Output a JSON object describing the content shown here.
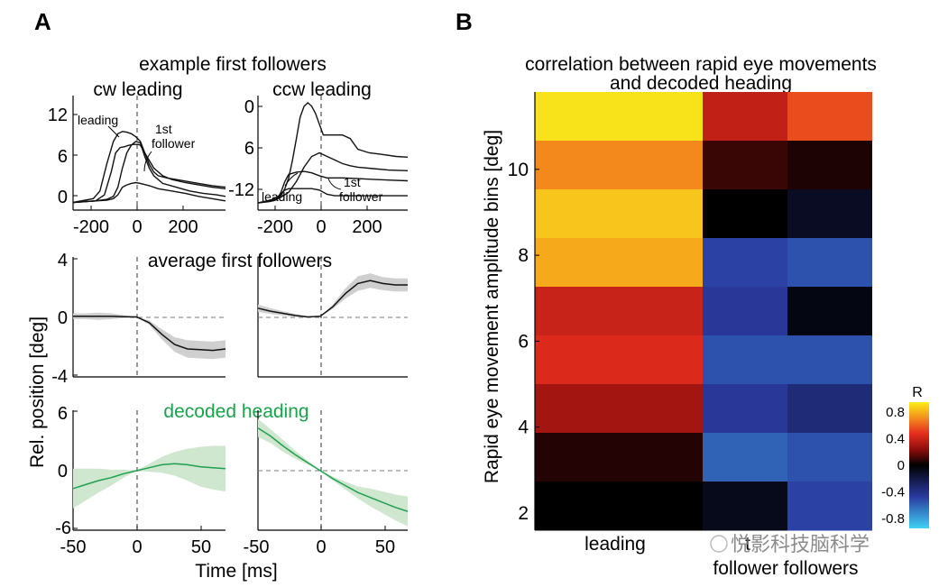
{
  "panels": {
    "a": "A",
    "b": "B"
  },
  "panel_a": {
    "section_title": "example first followers",
    "top_left": {
      "title": "cw leading",
      "yticks": [
        "12",
        "6",
        "0"
      ],
      "xticks": [
        "-200",
        "0",
        "200"
      ],
      "annot_leading": "leading",
      "annot_follower_1": "1st",
      "annot_follower_2": "follower"
    },
    "top_right": {
      "title": "ccw leading",
      "yticks": [
        "0",
        "6",
        "-12"
      ],
      "xticks": [
        "-200",
        "0",
        "200"
      ],
      "annot_leading": "leading",
      "annot_follower_1": "1st",
      "annot_follower_2": "follower"
    },
    "middle": {
      "title": "average first followers",
      "yticks": [
        "4",
        "0",
        "-4"
      ],
      "ylabel": "Rel. position [deg]"
    },
    "bottom": {
      "title": "decoded heading",
      "yticks": [
        "6",
        "0",
        "-6"
      ],
      "xticks": [
        "-50",
        "0",
        "50"
      ],
      "xlabel": "Time [ms]"
    }
  },
  "chart_data": [
    {
      "type": "line",
      "panel": "A top-left",
      "title": "cw leading",
      "x_range": [
        -300,
        380
      ],
      "y_range": [
        -1,
        14
      ],
      "xticks": [
        -200,
        0,
        200
      ],
      "yticks": [
        12,
        6,
        0
      ],
      "vertical_reference": 0,
      "series": [
        {
          "x": [
            -300,
            -210,
            -180,
            -150,
            -120,
            -100,
            -80,
            -60,
            -40,
            -20,
            0,
            20,
            40,
            60,
            80,
            120,
            160,
            200,
            260,
            320,
            380
          ],
          "values": [
            0,
            0.5,
            1.5,
            5,
            8,
            9,
            9.3,
            9.2,
            9,
            8.6,
            8,
            6.5,
            5,
            4,
            3.5,
            3.2,
            3,
            2.8,
            2.5,
            2.2,
            2
          ]
        },
        {
          "x": [
            -300,
            -200,
            -160,
            -130,
            -110,
            -90,
            -70,
            -50,
            -30,
            -10,
            0,
            20,
            40,
            60,
            100,
            140,
            200,
            260,
            320,
            380
          ],
          "values": [
            0,
            0.2,
            1,
            4,
            6.5,
            7.2,
            7.3,
            7.5,
            7.6,
            7.6,
            7.5,
            6.5,
            5.5,
            4.5,
            3.5,
            3,
            2.6,
            2.3,
            2,
            1.8
          ]
        },
        {
          "x": [
            -300,
            -200,
            -150,
            -120,
            -100,
            -80,
            -60,
            -40,
            -20,
            0,
            20,
            40,
            60,
            100,
            160,
            220,
            280,
            340,
            380
          ],
          "values": [
            0,
            0.2,
            0.4,
            0.8,
            2,
            4.5,
            6.5,
            7.5,
            8,
            7.8,
            6,
            4.5,
            3.5,
            2.5,
            2,
            1.5,
            1.2,
            1,
            0.8
          ]
        },
        {
          "x": [
            -300,
            -200,
            -150,
            -120,
            -100,
            -80,
            -60,
            -40,
            -20,
            0,
            40,
            80,
            140,
            200,
            260,
            320,
            380
          ],
          "values": [
            0,
            0.2,
            0.3,
            0.5,
            1,
            2,
            2.3,
            2.5,
            2.6,
            2.5,
            2.2,
            1.8,
            1.5,
            1.2,
            0.8,
            0.5,
            0.2
          ]
        }
      ]
    },
    {
      "type": "line",
      "panel": "A top-right",
      "title": "ccw leading",
      "x_range": [
        -160,
        230
      ],
      "y_range": [
        -15,
        1
      ],
      "xticks": [
        -200,
        0,
        200
      ],
      "yticks": [
        0,
        6,
        -12
      ],
      "vertical_reference": 0,
      "series": [
        {
          "x": [
            -160,
            -120,
            -100,
            -90,
            -80,
            -70,
            -60,
            -50,
            -40,
            -30,
            -20,
            -10,
            0,
            10,
            20,
            40,
            60,
            80,
            100,
            130,
            160,
            200,
            230
          ],
          "values": [
            0,
            -0.5,
            -1,
            -2,
            -3.5,
            -6,
            -9,
            -12,
            -13.5,
            -14,
            -13.5,
            -12.5,
            -11,
            -9.5,
            -9.5,
            -9.5,
            -9.5,
            -9,
            -7.5,
            -7,
            -6.8,
            -6.5,
            -6.4
          ]
        },
        {
          "x": [
            -160,
            -120,
            -100,
            -80,
            -60,
            -40,
            -20,
            0,
            20,
            40,
            60,
            80,
            100,
            140,
            180,
            230
          ],
          "values": [
            0,
            -0.3,
            -0.8,
            -1.5,
            -3,
            -5,
            -6.5,
            -7,
            -6.5,
            -6,
            -5.5,
            -5.2,
            -5,
            -4.8,
            -4.6,
            -4.5
          ]
        },
        {
          "x": [
            -160,
            -130,
            -110,
            -100,
            -90,
            -80,
            -60,
            -40,
            -20,
            0,
            20,
            40,
            60,
            100,
            140,
            180,
            230
          ],
          "values": [
            0,
            -0.2,
            -0.5,
            -1.5,
            -3,
            -4,
            -4.3,
            -4.4,
            -4.2,
            -3.8,
            -3.5,
            -3.5,
            -3.5,
            -3.4,
            -3.3,
            -3.2,
            -3.1
          ]
        },
        {
          "x": [
            -160,
            -130,
            -110,
            -100,
            -90,
            -80,
            -60,
            -40,
            -20,
            0,
            20,
            40,
            60,
            100,
            140,
            180,
            230
          ],
          "values": [
            0,
            -0.3,
            -0.8,
            -1.3,
            -1.8,
            -2,
            -2,
            -2,
            -2,
            -1.8,
            -1.2,
            -1,
            -1,
            -1,
            -1,
            -1,
            -1
          ]
        }
      ]
    },
    {
      "type": "line",
      "panel": "A middle-left",
      "title": "average first followers",
      "x_range": [
        -50,
        70
      ],
      "y_range": [
        -4,
        4
      ],
      "yticks": [
        4,
        0,
        -4
      ],
      "vertical_reference": 0,
      "horizontal_reference": 0,
      "x": [
        -50,
        -40,
        -30,
        -20,
        -10,
        0,
        10,
        20,
        30,
        40,
        50,
        60,
        70
      ],
      "mean": [
        0.05,
        0.05,
        0.05,
        0.05,
        0.02,
        0,
        -0.4,
        -1.2,
        -1.9,
        -2.2,
        -2.25,
        -2.3,
        -2.2
      ],
      "band_width": [
        0.2,
        0.2,
        0.25,
        0.2,
        0.1,
        0,
        0.15,
        0.35,
        0.5,
        0.6,
        0.6,
        0.6,
        0.6
      ]
    },
    {
      "type": "line",
      "panel": "A middle-right",
      "x_range": [
        -50,
        70
      ],
      "y_range": [
        -4,
        4
      ],
      "vertical_reference": 0,
      "horizontal_reference": 0,
      "x": [
        -50,
        -40,
        -30,
        -20,
        -10,
        0,
        10,
        20,
        30,
        40,
        50,
        60,
        70
      ],
      "mean": [
        0.6,
        0.4,
        0.25,
        0.1,
        0,
        0.05,
        0.7,
        1.6,
        2.3,
        2.5,
        2.3,
        2.2,
        2.2
      ],
      "band_width": [
        0.25,
        0.2,
        0.15,
        0.1,
        0.05,
        0,
        0.15,
        0.35,
        0.5,
        0.5,
        0.45,
        0.45,
        0.45
      ]
    },
    {
      "type": "line",
      "panel": "A bottom-left",
      "title": "decoded heading",
      "x_range": [
        -50,
        70
      ],
      "y_range": [
        -6,
        6
      ],
      "xticks": [
        -50,
        0,
        50
      ],
      "yticks": [
        6,
        0,
        -6
      ],
      "vertical_reference": 0,
      "horizontal_reference": 0,
      "x": [
        -50,
        -40,
        -30,
        -20,
        -10,
        0,
        10,
        20,
        30,
        40,
        50,
        60,
        70
      ],
      "mean": [
        -1.8,
        -1.4,
        -1,
        -0.7,
        -0.3,
        0,
        0.3,
        0.6,
        0.7,
        0.6,
        0.4,
        0.3,
        0.2
      ],
      "band_width": [
        2,
        1.6,
        1.2,
        0.8,
        0.4,
        0,
        0.4,
        0.8,
        1.2,
        1.6,
        2,
        2.2,
        2.3
      ]
    },
    {
      "type": "line",
      "panel": "A bottom-right",
      "x_range": [
        -50,
        70
      ],
      "y_range": [
        -6,
        6
      ],
      "xticks": [
        -50,
        0,
        50
      ],
      "vertical_reference": 0,
      "horizontal_reference": 0,
      "x": [
        -50,
        -40,
        -30,
        -20,
        -10,
        0,
        10,
        20,
        30,
        40,
        50,
        60,
        70
      ],
      "mean": [
        4.3,
        3.5,
        2.5,
        1.6,
        0.8,
        0,
        -0.8,
        -1.5,
        -2.2,
        -2.7,
        -3.2,
        -3.7,
        -4.1
      ],
      "band_width": [
        0.9,
        0.7,
        0.6,
        0.4,
        0.2,
        0,
        0.2,
        0.4,
        0.6,
        0.9,
        1.1,
        1.3,
        1.5
      ]
    },
    {
      "type": "heatmap",
      "panel": "B",
      "title": "correlation between rapid eye movements\nand decoded heading",
      "ylabel": "Rapid eye movement amplitude bins [deg]",
      "yticks": [
        "10",
        "8",
        "6",
        "4",
        "2"
      ],
      "ytick_values": [
        10,
        8,
        6,
        4,
        2
      ],
      "y_range": [
        1.6,
        11.8
      ],
      "columns": [
        "leading",
        "1st follower",
        "2nd followers"
      ],
      "column_labels_visible": [
        "leading",
        "t",
        "follower followers"
      ],
      "colorbar": {
        "label": "R",
        "ticks": [
          "0.8",
          "0.4",
          "0",
          "-0.4",
          "-0.8"
        ],
        "tick_values": [
          0.8,
          0.4,
          0,
          -0.4,
          -0.8
        ],
        "range": [
          -0.95,
          0.95
        ]
      },
      "rows_top_to_bottom": [
        [
          0.92,
          0.38,
          0.55
        ],
        [
          0.7,
          0.1,
          0.05
        ],
        [
          0.85,
          0.0,
          -0.1
        ],
        [
          0.78,
          -0.5,
          -0.55
        ],
        [
          0.4,
          -0.45,
          -0.05
        ],
        [
          0.45,
          -0.55,
          -0.55
        ],
        [
          0.3,
          -0.45,
          -0.35
        ],
        [
          0.06,
          -0.6,
          -0.55
        ],
        [
          0.0,
          -0.08,
          -0.5
        ]
      ]
    }
  ],
  "watermark": "悦影科技脑科学"
}
